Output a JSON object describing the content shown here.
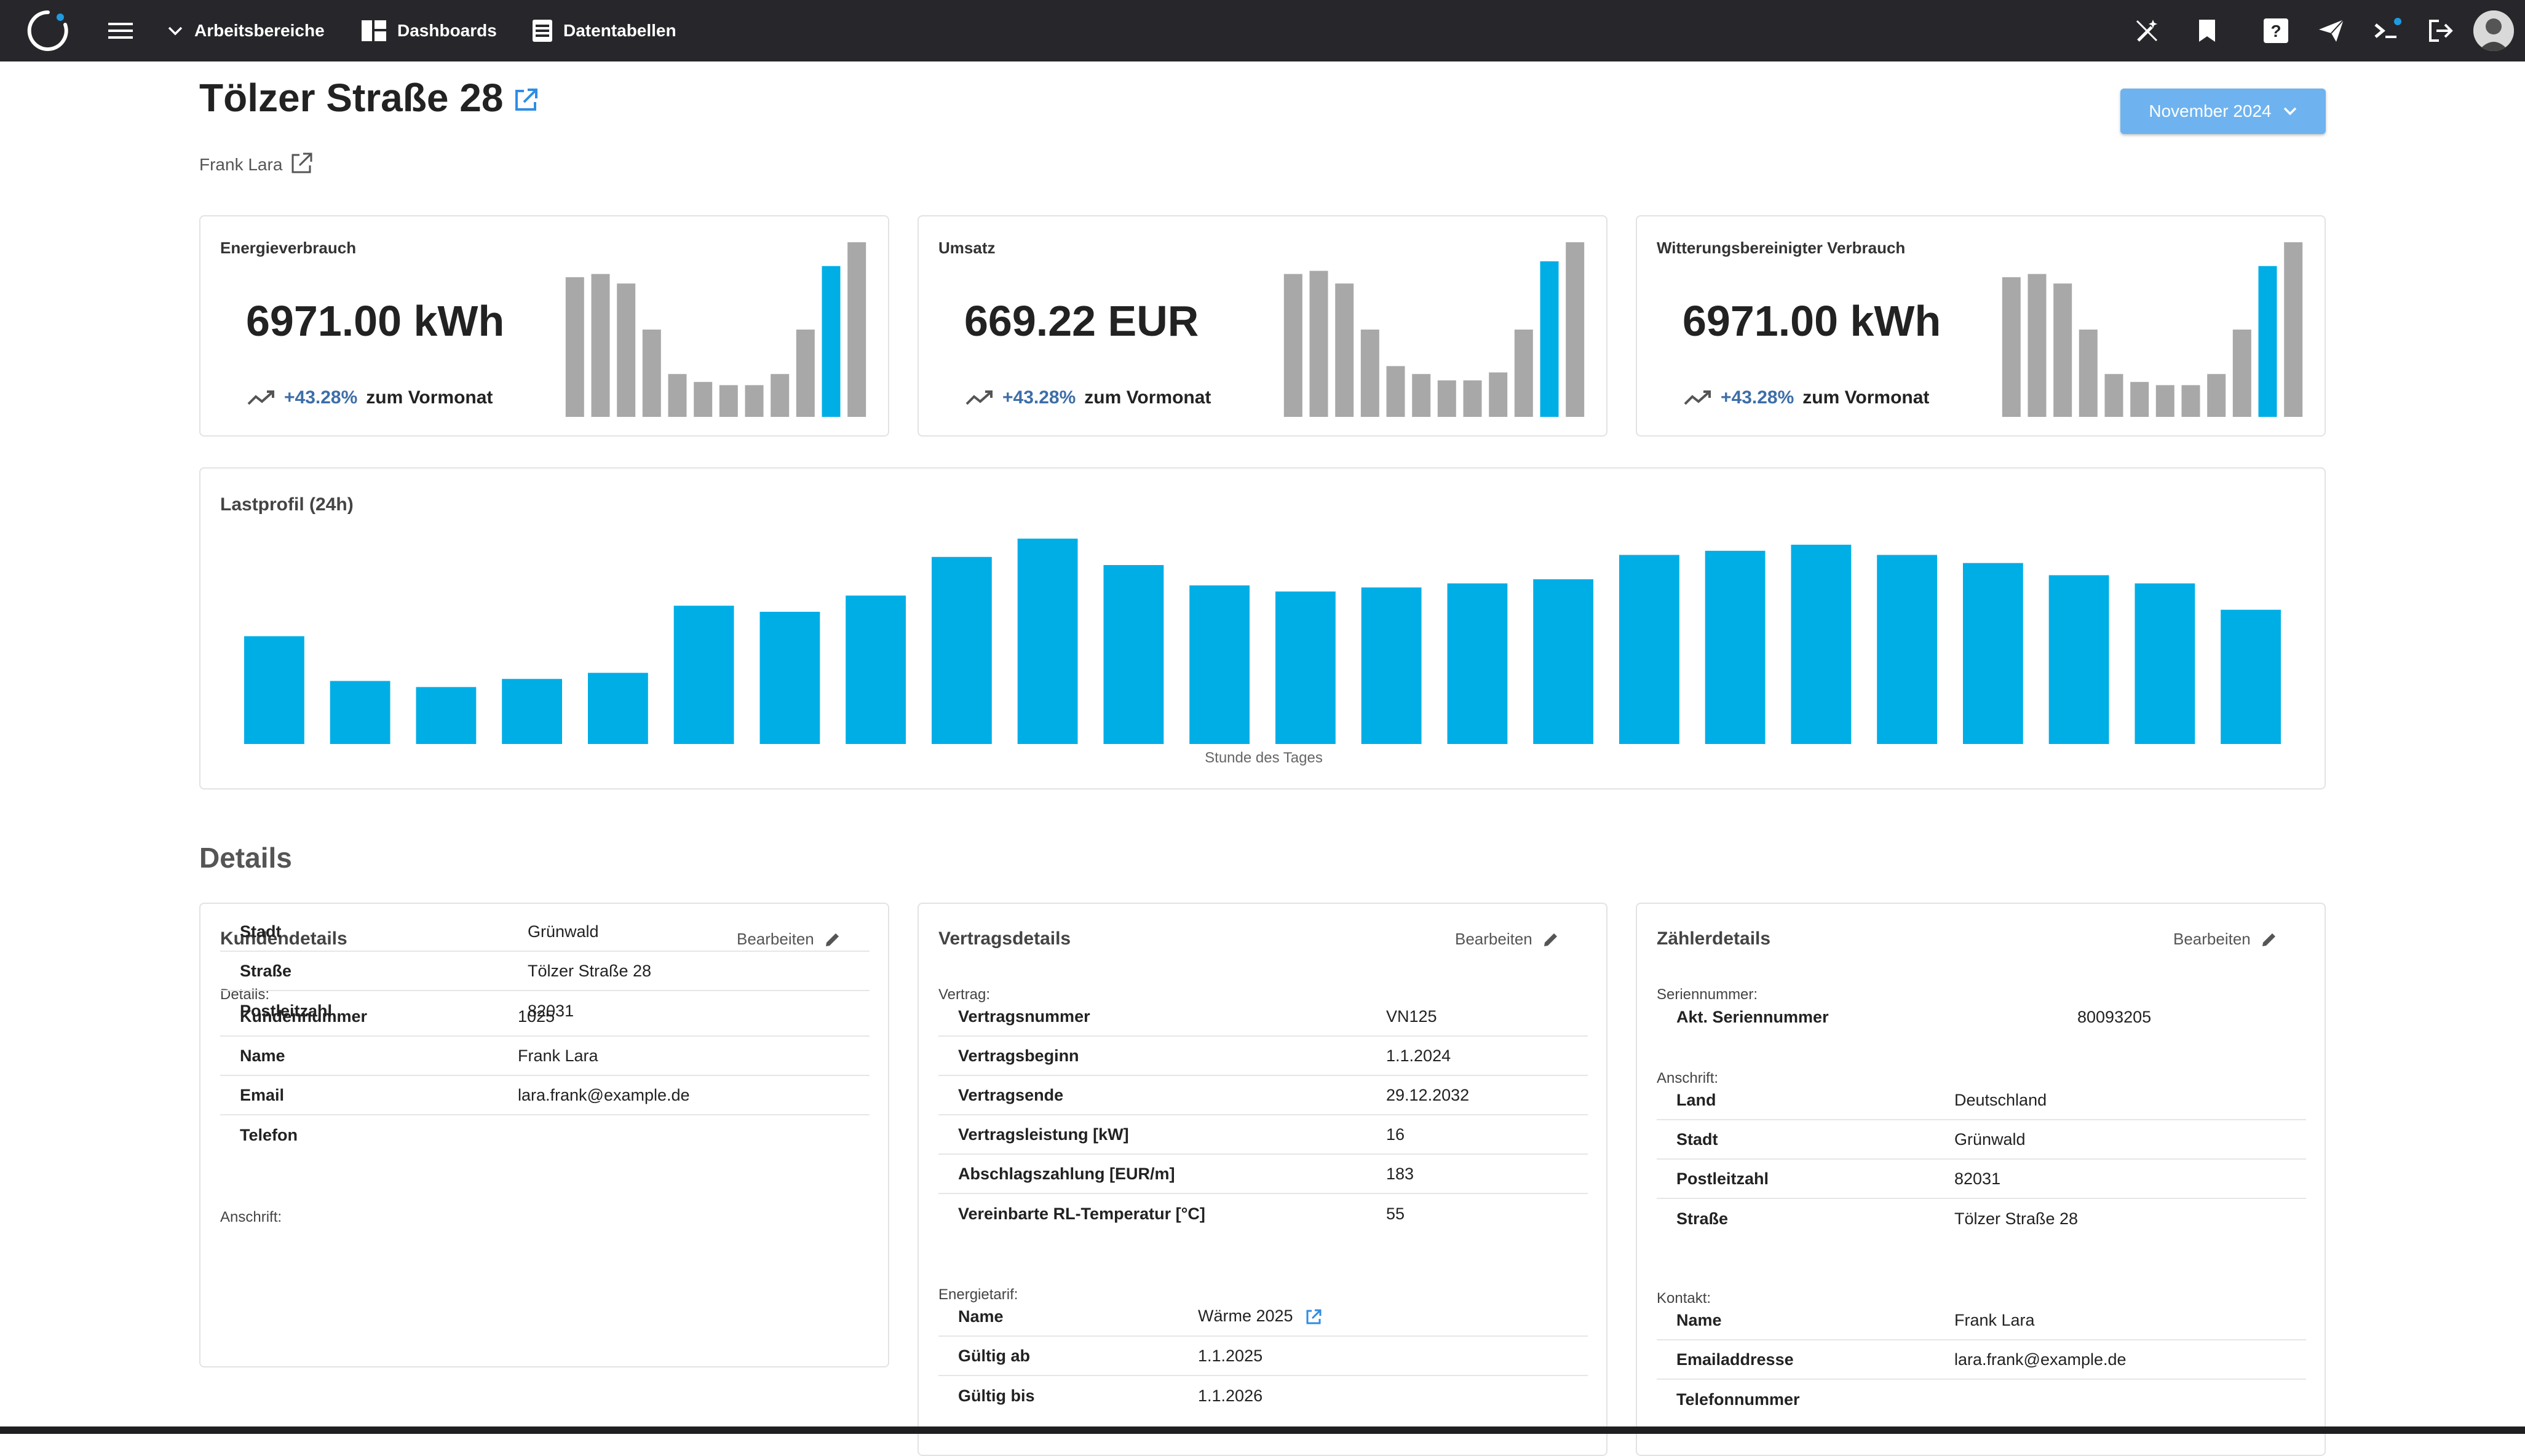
{
  "nav": {
    "workspaces": "Arbeitsbereiche",
    "dashboards": "Dashboards",
    "datatables": "Datentabellen"
  },
  "header": {
    "title": "Tölzer Straße 28",
    "subtitle": "Frank Lara",
    "month": "November 2024"
  },
  "kpis": [
    {
      "title": "Energieverbrauch",
      "value": "6971.00 kWh",
      "trend": "+43.28%",
      "trend_label": "zum Vormonat"
    },
    {
      "title": "Umsatz",
      "value": "669.22 EUR",
      "trend": "+43.28%",
      "trend_label": "zum Vormonat"
    },
    {
      "title": "Witterungsbereinigter Verbrauch",
      "value": "6971.00 kWh",
      "trend": "+43.28%",
      "trend_label": "zum Vormonat"
    }
  ],
  "chart_data": [
    {
      "type": "bar",
      "values": [
        88,
        90,
        84,
        55,
        27,
        22,
        20,
        20,
        27,
        55,
        95,
        110
      ],
      "highlight_index": 10,
      "colors": {
        "normal": "#a8a8a8",
        "highlight": "#00aee6"
      }
    },
    {
      "type": "bar",
      "values": [
        90,
        92,
        84,
        55,
        32,
        27,
        23,
        23,
        28,
        55,
        98,
        110
      ],
      "highlight_index": 10,
      "colors": {
        "normal": "#a8a8a8",
        "highlight": "#00aee6"
      }
    },
    {
      "type": "bar",
      "values": [
        88,
        90,
        84,
        55,
        27,
        22,
        20,
        20,
        27,
        55,
        95,
        110
      ],
      "highlight_index": 10,
      "colors": {
        "normal": "#a8a8a8",
        "highlight": "#00aee6"
      }
    },
    {
      "type": "bar",
      "title": "Lastprofil (24h)",
      "xlabel": "Stunde des Tages",
      "values": [
        53,
        31,
        28,
        32,
        35,
        68,
        65,
        73,
        92,
        101,
        88,
        78,
        75,
        77,
        79,
        81,
        93,
        95,
        98,
        93,
        89,
        83,
        79,
        66
      ],
      "color": "#00aee6"
    }
  ],
  "details": {
    "heading": "Details",
    "edit_label": "Bearbeiten",
    "customer": {
      "title": "Kundendetails",
      "sec1": "Details:",
      "rows1": [
        {
          "k": "Kundennummer",
          "v": "1025"
        },
        {
          "k": "Name",
          "v": "Frank Lara"
        },
        {
          "k": "Email",
          "v": "lara.frank@example.de"
        },
        {
          "k": "Telefon",
          "v": ""
        }
      ],
      "sec2": "Anschrift:",
      "rows2": [
        {
          "k": "Stadt",
          "v": "Grünwald"
        },
        {
          "k": "Straße",
          "v": "Tölzer Straße 28"
        },
        {
          "k": "Postleitzahl",
          "v": "82031"
        }
      ]
    },
    "contract": {
      "title": "Vertragsdetails",
      "sec1": "Vertrag:",
      "rows1": [
        {
          "k": "Vertragsnummer",
          "v": "VN125"
        },
        {
          "k": "Vertragsbeginn",
          "v": "1.1.2024"
        },
        {
          "k": "Vertragsende",
          "v": "29.12.2032"
        },
        {
          "k": "Vertragsleistung [kW]",
          "v": "16"
        },
        {
          "k": "Abschlagszahlung [EUR/m]",
          "v": "183"
        },
        {
          "k": "Vereinbarte RL-Temperatur [°C]",
          "v": "55"
        }
      ],
      "sec2": "Energietarif:",
      "rows2": [
        {
          "k": "Name",
          "v": "Wärme 2025"
        },
        {
          "k": "Gültig ab",
          "v": "1.1.2025"
        },
        {
          "k": "Gültig bis",
          "v": "1.1.2026"
        }
      ]
    },
    "meter": {
      "title": "Zählerdetails",
      "sec1": "Seriennummer:",
      "rows1": [
        {
          "k": "Akt. Seriennummer",
          "v": "80093205"
        }
      ],
      "sec2": "Anschrift:",
      "rows2": [
        {
          "k": "Land",
          "v": "Deutschland"
        },
        {
          "k": "Stadt",
          "v": "Grünwald"
        },
        {
          "k": "Postleitzahl",
          "v": "82031"
        },
        {
          "k": "Straße",
          "v": "Tölzer Straße 28"
        }
      ],
      "sec3": "Kontakt:",
      "rows3": [
        {
          "k": "Name",
          "v": "Frank Lara"
        },
        {
          "k": "Emailaddresse",
          "v": "lara.frank@example.de"
        },
        {
          "k": "Telefonnummer",
          "v": ""
        }
      ]
    }
  },
  "icons": {
    "logo": "app-logo-icon",
    "menu": "hamburger-menu-icon",
    "chevron": "chevron-down-icon",
    "dashboards": "dashboard-grid-icon",
    "datatables": "table-icon",
    "magic": "magic-wand-off-icon",
    "bookmark": "bookmark-icon",
    "help": "help-icon",
    "send": "send-icon",
    "terminal": "terminal-icon",
    "logout": "logout-icon",
    "avatar": "avatar",
    "external": "external-link-icon",
    "edit": "pencil-icon",
    "trend": "trending-up-icon"
  }
}
